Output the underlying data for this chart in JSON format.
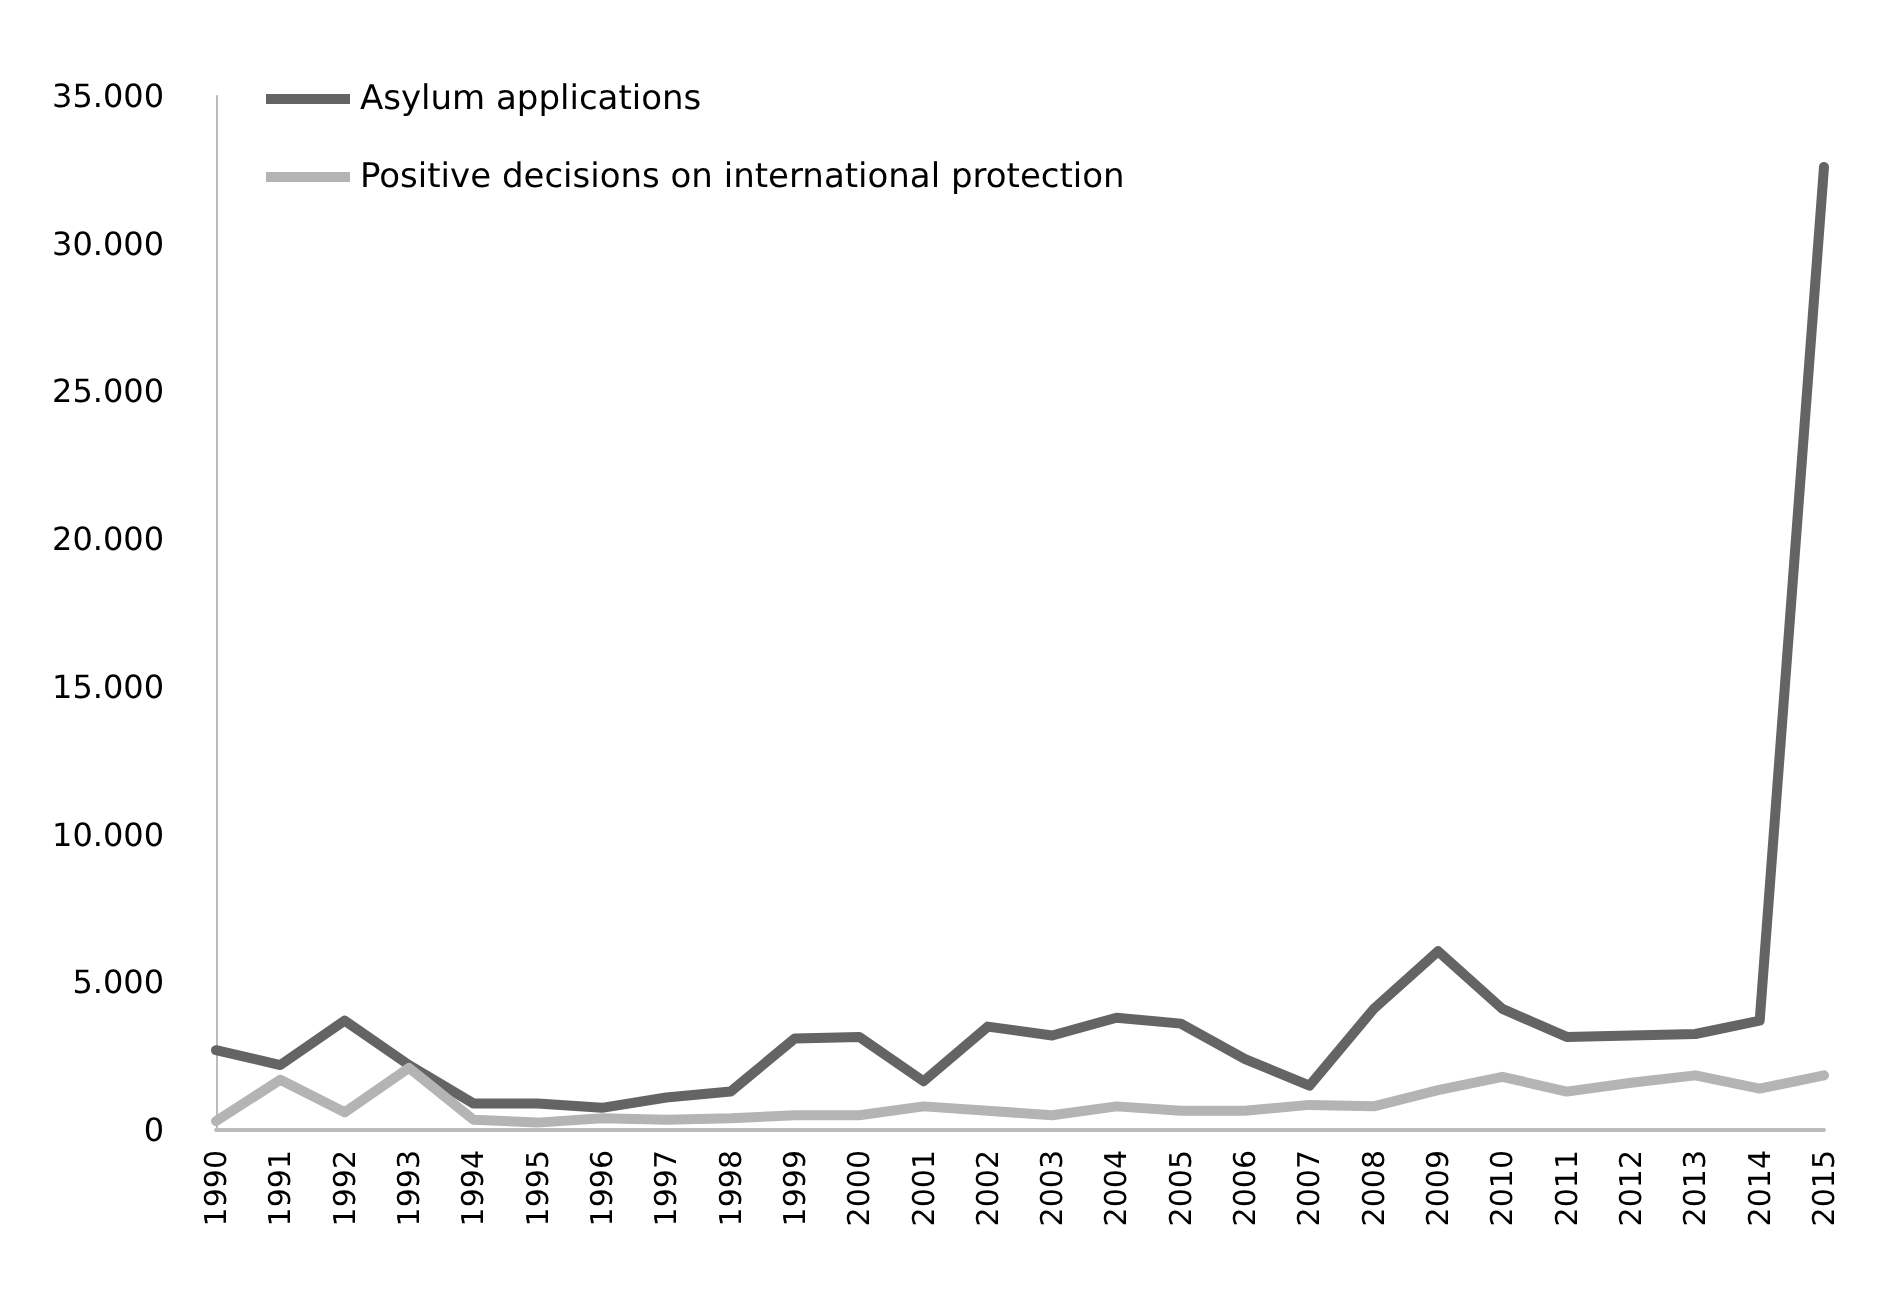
{
  "chart_data": {
    "type": "line",
    "categories": [
      "1990",
      "1991",
      "1992",
      "1993",
      "1994",
      "1995",
      "1996",
      "1997",
      "1998",
      "1999",
      "2000",
      "2001",
      "2002",
      "2003",
      "2004",
      "2005",
      "2006",
      "2007",
      "2008",
      "2009",
      "2010",
      "2011",
      "2012",
      "2013",
      "2014",
      "2015"
    ],
    "series": [
      {
        "name": "Asylum applications",
        "color": "#646464",
        "values": [
          2700,
          2200,
          3700,
          2200,
          900,
          900,
          750,
          1100,
          1300,
          3100,
          3150,
          1650,
          3500,
          3200,
          3800,
          3600,
          2400,
          1500,
          4100,
          6050,
          4100,
          3150,
          3200,
          3250,
          3700,
          32600
        ]
      },
      {
        "name": "Positive decisions on international protection",
        "color": "#b4b4b4",
        "values": [
          300,
          1700,
          600,
          2100,
          350,
          250,
          400,
          350,
          400,
          500,
          500,
          800,
          650,
          500,
          800,
          650,
          650,
          850,
          800,
          1350,
          1800,
          1300,
          1600,
          1850,
          1400,
          1850
        ]
      }
    ],
    "ylim": [
      0,
      35000
    ],
    "yticks": [
      {
        "value": 0,
        "label": "0"
      },
      {
        "value": 5000,
        "label": "5.000"
      },
      {
        "value": 10000,
        "label": "10.000"
      },
      {
        "value": 15000,
        "label": "15.000"
      },
      {
        "value": 20000,
        "label": "20.000"
      },
      {
        "value": 25000,
        "label": "25.000"
      },
      {
        "value": 30000,
        "label": "30.000"
      },
      {
        "value": 35000,
        "label": "35.000"
      }
    ],
    "grid": false,
    "legend": "top left",
    "marker": "none",
    "line_style": "solid"
  }
}
